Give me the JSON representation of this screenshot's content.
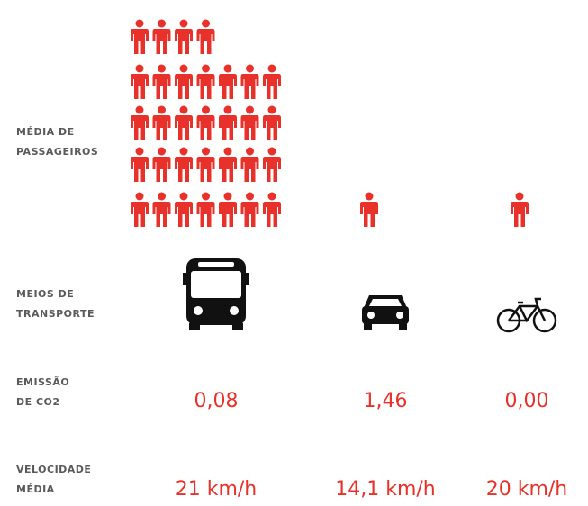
{
  "labels": {
    "passengers": [
      "MÉDIA DE",
      "PASSAGEIROS"
    ],
    "transport": [
      "MEIOS DE",
      "TRANSPORTE"
    ],
    "emission": [
      "EMISSÃO",
      "DE CO2"
    ],
    "speed": [
      "VELOCIDADE",
      "MÉDIA"
    ]
  },
  "modes": [
    {
      "passengers": 32,
      "emission": "0,08",
      "speed": "21 km/h"
    },
    {
      "passengers": 1.46,
      "emission": "1,46",
      "speed": "14,1 km/h"
    },
    {
      "passengers": 1,
      "emission": "0,00",
      "speed": "20 km/h"
    }
  ]
}
